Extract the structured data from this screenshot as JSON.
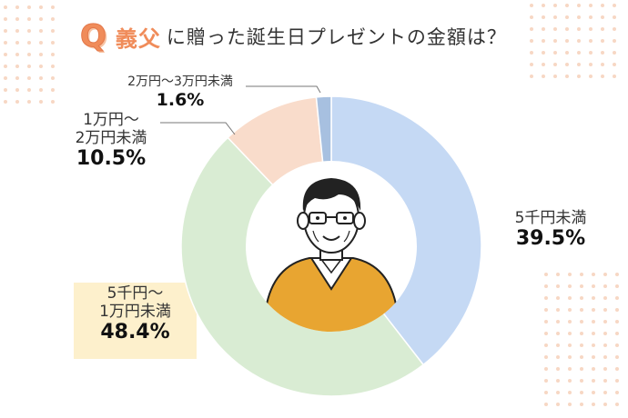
{
  "question": {
    "mark": "Q",
    "subject": "義父",
    "text": "に贈った誕生日プレゼントの金額は？"
  },
  "avatar": {
    "icon": "father-in-law-illustration"
  },
  "colors": {
    "accent": "#f08c5a",
    "highlight_box": "#fdf0cc"
  },
  "chart_data": {
    "type": "pie",
    "variant": "donut",
    "title": "",
    "categories": [
      "5千円未満",
      "5千円〜1万円未満",
      "1万円〜2万円未満",
      "2万円〜3万円未満"
    ],
    "values": [
      39.5,
      48.4,
      10.5,
      1.6
    ],
    "unit": "%",
    "labels": [
      "39.5%",
      "48.4%",
      "10.5%",
      "1.6%"
    ],
    "colors": [
      "#c5d9f4",
      "#d9ecd3",
      "#f9dccb",
      "#a7c0e0"
    ],
    "start_angle": "12 o'clock, clockwise",
    "highlighted": "5千円〜1万円未満"
  },
  "labels": {
    "a": {
      "line1": "5千円未満",
      "pct": "39.5%"
    },
    "b": {
      "line1": "5千円〜",
      "line2": "1万円未満",
      "pct": "48.4%"
    },
    "c": {
      "line1": "1万円〜",
      "line2": "2万円未満",
      "pct": "10.5%"
    },
    "d": {
      "line1": "2万円〜3万円未満",
      "pct": "1.6%"
    }
  }
}
